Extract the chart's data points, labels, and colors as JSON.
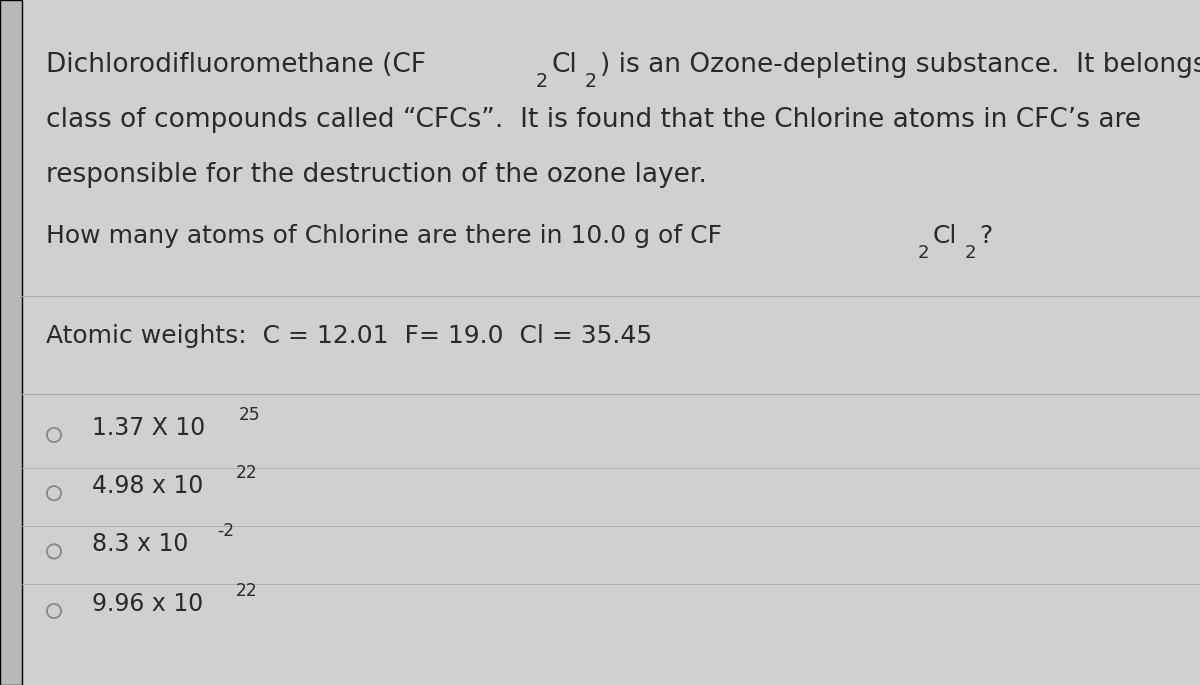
{
  "bg_color": "#d0d0d0",
  "panel_color": "#e2e2e2",
  "left_bar_color": "#b8b8b8",
  "text_color": "#2a2a2a",
  "title_line2": "class of compounds called “CFCs”.  It is found that the Chlorine atoms in CFC’s are",
  "title_line3": "responsible for the destruction of the ozone layer.",
  "atomic_weights": "Atomic weights:  C = 12.01  F= 19.0  Cl = 35.45",
  "options": [
    {
      "label": "1.37 X 10",
      "exp": "25"
    },
    {
      "label": "4.98 x 10",
      "exp": "22"
    },
    {
      "label": "8.3 x 10",
      "exp": "-2"
    },
    {
      "label": "9.96 x 10",
      "exp": "22"
    }
  ],
  "divider_color": "#aaaaaa",
  "font_size_main": 19,
  "font_size_question": 18,
  "font_size_atomic": 18,
  "font_size_options": 17
}
